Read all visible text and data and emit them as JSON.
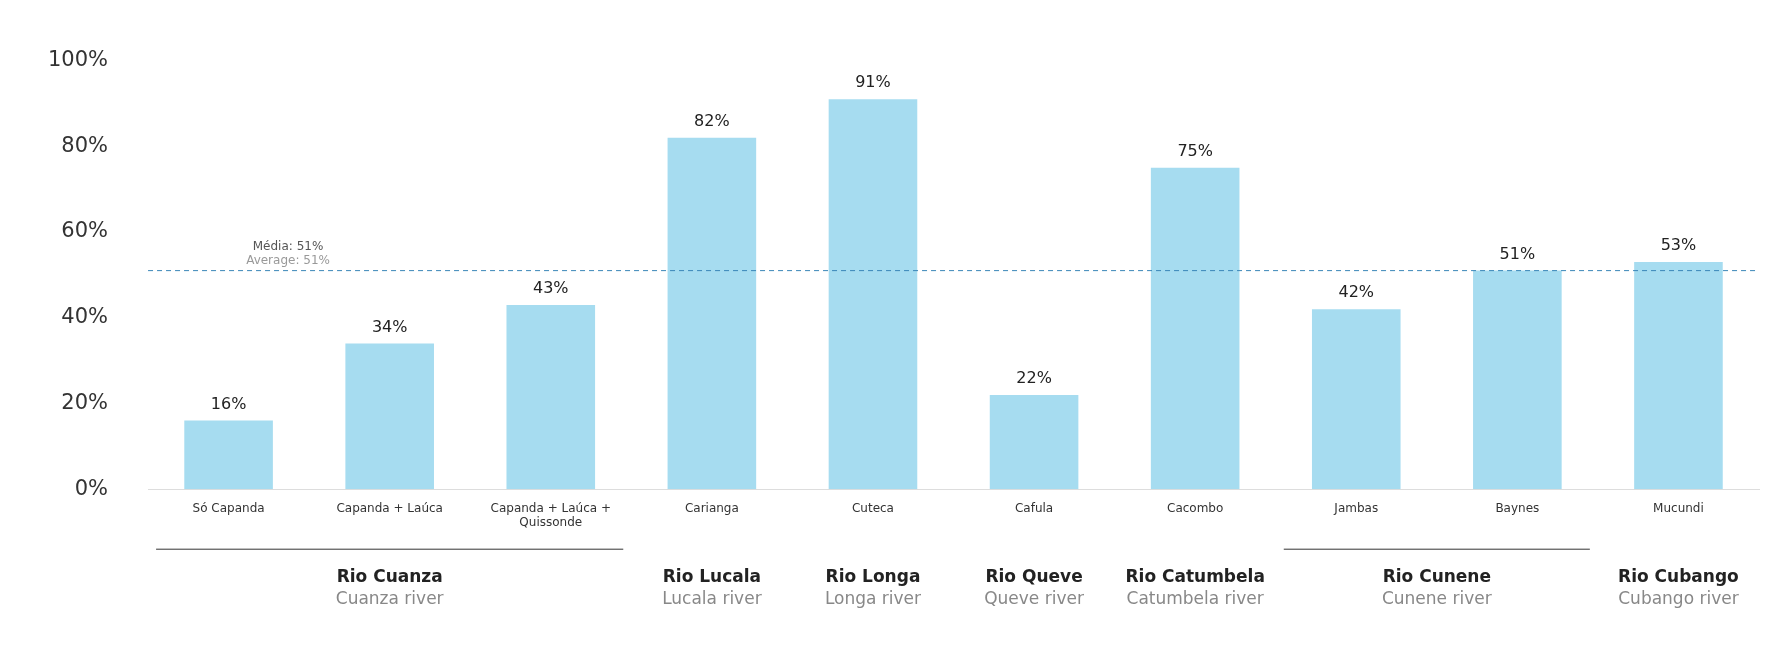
{
  "chart_data": {
    "type": "bar",
    "categories": [
      "Só Capanda",
      "Capanda + Laúca",
      "Capanda + Laúca + Quissonde",
      "Carianga",
      "Cuteca",
      "Cafula",
      "Cacombo",
      "Jambas",
      "Baynes",
      "Mucundi"
    ],
    "values": [
      16,
      34,
      43,
      82,
      91,
      22,
      75,
      42,
      51,
      53
    ],
    "value_labels": [
      "16%",
      "34%",
      "43%",
      "82%",
      "91%",
      "22%",
      "75%",
      "42%",
      "51%",
      "53%"
    ],
    "color": "#a6dcf0",
    "ylim": [
      0,
      100
    ],
    "yticks": [
      {
        "value": 0,
        "label": "0%"
      },
      {
        "value": 20,
        "label": "20%"
      },
      {
        "value": 40,
        "label": "40%"
      },
      {
        "value": 60,
        "label": "60%"
      },
      {
        "value": 80,
        "label": "80%"
      },
      {
        "value": 100,
        "label": "100%"
      }
    ],
    "grid": false,
    "legend": false,
    "ref_lines": [
      {
        "axis": "y",
        "value": 51,
        "label": "Média: 51%\nAverage: 51%",
        "color": "#3a86b8",
        "line_style": "dashed"
      }
    ],
    "annotations": [
      "Rio Cuanza",
      "Cuanza river",
      "Rio Lucala",
      "Lucala river",
      "Rio Longa",
      "Longa river",
      "Rio Queve",
      "Queve river",
      "Rio Catumbela",
      "Catumbela river",
      "Rio Cunene",
      "Cunene river",
      "Rio Cubango",
      "Cubango river"
    ]
  }
}
